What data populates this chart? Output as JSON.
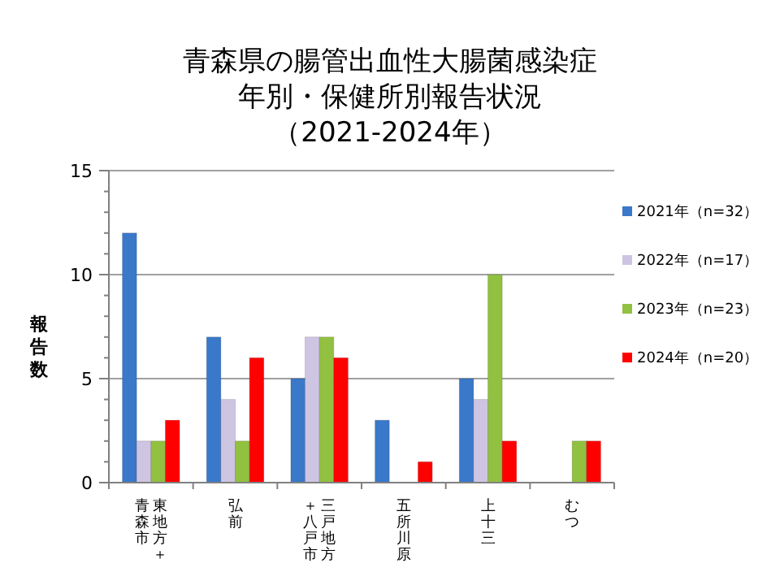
{
  "chart_data": {
    "type": "bar",
    "title": "青森県の腸管出血性大腸菌感染症年別・保健所別報告状況",
    "subtitle": "（2021-2024年）",
    "ylabel": "報告数",
    "categories": [
      "東地方＋青森市",
      "弘前",
      "三戸地方＋八戸市",
      "五所川原",
      "上十三",
      "むつ"
    ],
    "series": [
      {
        "name": "2021年（n=32）",
        "color": "#3a78c9",
        "values": [
          12,
          7,
          5,
          3,
          5,
          0
        ]
      },
      {
        "name": "2022年（n=17）",
        "color": "#cdc5e2",
        "values": [
          2,
          4,
          7,
          0,
          4,
          0
        ]
      },
      {
        "name": "2023年（n=23）",
        "color": "#92c040",
        "values": [
          2,
          2,
          7,
          0,
          10,
          2
        ]
      },
      {
        "name": "2024年（n=20）",
        "color": "#ff0000",
        "values": [
          3,
          6,
          6,
          1,
          2,
          2
        ]
      }
    ],
    "ylim": [
      0,
      15
    ],
    "yticks": [
      0,
      {
        "value": 1,
        "label": null
      },
      {
        "value": 2,
        "label": null
      },
      {
        "value": 3,
        "label": null
      },
      {
        "value": 4,
        "label": null
      },
      5,
      {
        "value": 6,
        "label": null
      },
      {
        "value": 7,
        "label": null
      },
      {
        "value": 8,
        "label": null
      },
      {
        "value": 9,
        "label": null
      },
      10,
      {
        "value": 11,
        "label": null
      },
      {
        "value": 12,
        "label": null
      },
      {
        "value": 13,
        "label": null
      },
      {
        "value": 14,
        "label": null
      },
      15
    ],
    "grid": "y",
    "legend": "right"
  }
}
